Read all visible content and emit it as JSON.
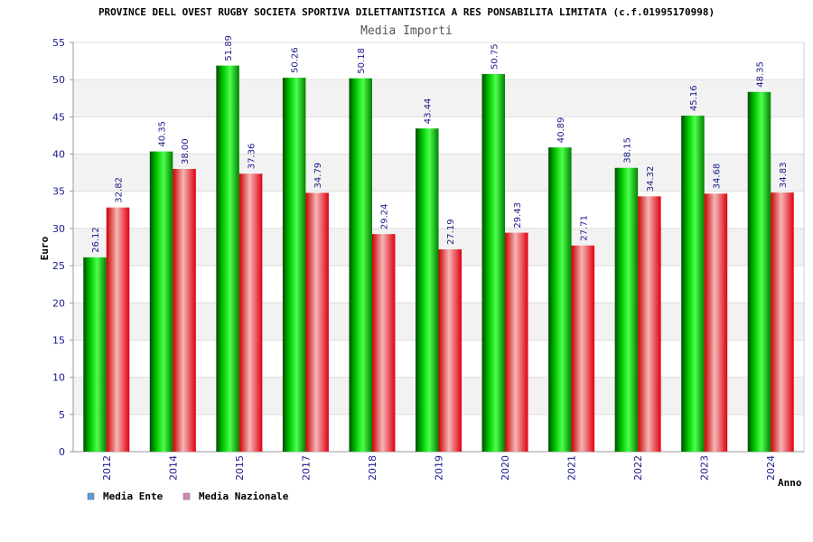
{
  "chart_data": {
    "type": "bar",
    "title": "PROVINCE DELL OVEST RUGBY SOCIETA SPORTIVA DILETTANTISTICA A RES PONSABILITA LIMITATA (c.f.01995170998)",
    "subtitle": "Media Importi",
    "xlabel": "Anno",
    "ylabel": "Euro",
    "ylim": [
      0,
      55
    ],
    "yticks": [
      0,
      5,
      10,
      15,
      20,
      25,
      30,
      35,
      40,
      45,
      50,
      55
    ],
    "categories": [
      "2012",
      "2014",
      "2015",
      "2017",
      "2018",
      "2019",
      "2020",
      "2021",
      "2022",
      "2023",
      "2024"
    ],
    "series": [
      {
        "name": "Media Ente",
        "color": "#00b000",
        "values": [
          26.12,
          40.35,
          51.89,
          50.26,
          50.18,
          43.44,
          50.75,
          40.89,
          38.15,
          45.16,
          48.35
        ],
        "labels": [
          "26.12",
          "40.35",
          "51.89",
          "50.26",
          "50.18",
          "43.44",
          "50.75",
          "40.89",
          "38.15",
          "45.16",
          "48.35"
        ]
      },
      {
        "name": "Media Nazionale",
        "color": "#e8202a",
        "values": [
          32.82,
          38.0,
          37.36,
          34.79,
          29.24,
          27.19,
          29.43,
          27.71,
          34.32,
          34.68,
          34.83
        ],
        "labels": [
          "32.82",
          "38.00",
          "37.36",
          "34.79",
          "29.24",
          "27.19",
          "29.43",
          "27.71",
          "34.32",
          "34.68",
          "34.83"
        ]
      }
    ],
    "legend": {
      "placement": "bottom-left",
      "swatch_colors": [
        "#5b9bd5",
        "#d983b5"
      ]
    },
    "grid": true,
    "band_colors": [
      "#ffffff",
      "#f2f2f2"
    ]
  }
}
